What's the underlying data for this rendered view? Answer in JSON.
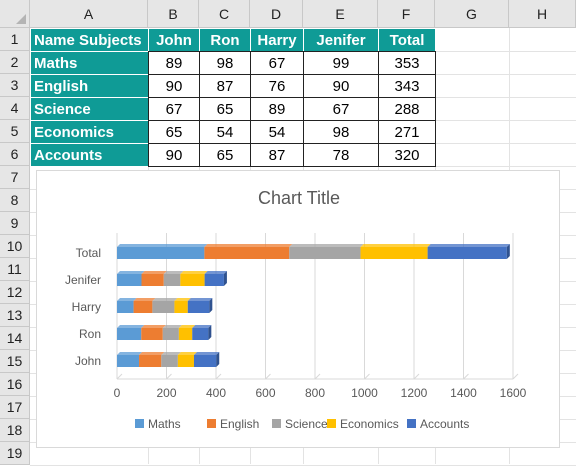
{
  "columns": [
    "A",
    "B",
    "C",
    "D",
    "E",
    "F",
    "G",
    "H"
  ],
  "rows": [
    "1",
    "2",
    "3",
    "4",
    "5",
    "6",
    "7",
    "8",
    "9",
    "10",
    "11",
    "12",
    "13",
    "14",
    "15",
    "16",
    "17",
    "18",
    "19"
  ],
  "table": {
    "headers": [
      "Name Subjects",
      "John",
      "Ron",
      "Harry",
      "Jenifer",
      "Total"
    ],
    "rows": [
      {
        "subject": "Maths",
        "values": [
          "89",
          "98",
          "67",
          "99",
          "353"
        ]
      },
      {
        "subject": "English",
        "values": [
          "90",
          "87",
          "76",
          "90",
          "343"
        ]
      },
      {
        "subject": "Science",
        "values": [
          "67",
          "65",
          "89",
          "67",
          "288"
        ]
      },
      {
        "subject": "Economics",
        "values": [
          "65",
          "54",
          "54",
          "98",
          "271"
        ]
      },
      {
        "subject": "Accounts",
        "values": [
          "90",
          "65",
          "87",
          "78",
          "320"
        ]
      }
    ]
  },
  "colors": {
    "header_fill": "#0f9b96",
    "series": {
      "Maths": "#5b9bd5",
      "English": "#ed7d31",
      "Science": "#a5a5a5",
      "Economics": "#ffc000",
      "Accounts": "#4472c4"
    }
  },
  "chart_data": {
    "type": "bar",
    "orientation": "horizontal",
    "stacked": true,
    "title": "Chart Title",
    "categories": [
      "John",
      "Ron",
      "Harry",
      "Jenifer",
      "Total"
    ],
    "series": [
      {
        "name": "Maths",
        "values": [
          89,
          98,
          67,
          99,
          353
        ]
      },
      {
        "name": "English",
        "values": [
          90,
          87,
          76,
          90,
          343
        ]
      },
      {
        "name": "Science",
        "values": [
          67,
          65,
          89,
          67,
          288
        ]
      },
      {
        "name": "Economics",
        "values": [
          65,
          54,
          54,
          98,
          271
        ]
      },
      {
        "name": "Accounts",
        "values": [
          90,
          65,
          87,
          78,
          320
        ]
      }
    ],
    "xlim": [
      0,
      1600
    ],
    "xticks": [
      "0",
      "200",
      "400",
      "600",
      "800",
      "1000",
      "1200",
      "1400",
      "1600"
    ],
    "grid": "vertical",
    "legend": "bottom"
  }
}
